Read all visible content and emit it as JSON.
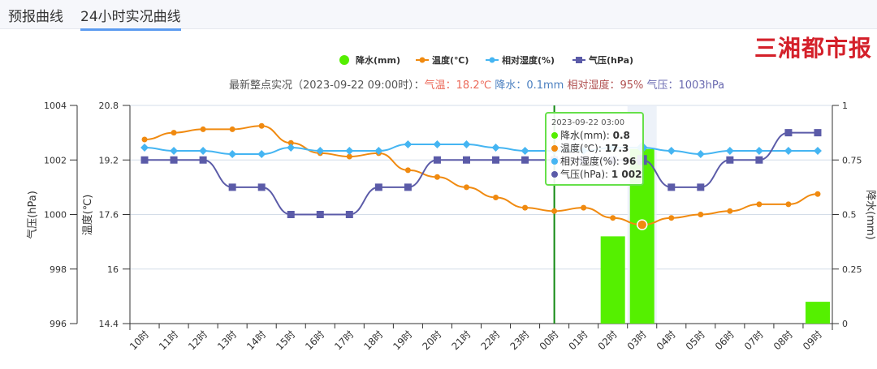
{
  "tabs": [
    {
      "label": "预报曲线"
    },
    {
      "label": "24小时实况曲线"
    }
  ],
  "legend": [
    {
      "label": "降水(mm)",
      "color": "#55ee00"
    },
    {
      "label": "温度(℃)",
      "color": "#f08a10"
    },
    {
      "label": "相对湿度(%)",
      "color": "#45b5f2"
    },
    {
      "label": "气压(hPa)",
      "color": "#5b5ba8"
    }
  ],
  "subtitle": {
    "prefix": "最新整点实况（2023-09-22 09:00时）：",
    "temp": "气温：18.2℃",
    "rain": "降水：0.1mm",
    "humidity": "相对湿度：95%",
    "pressure": "气压：1003hPa"
  },
  "tooltip": {
    "time": "2023-09-22 03:00",
    "rows": [
      {
        "label": "降水(mm): ",
        "value": "0.8",
        "color": "#55ee00"
      },
      {
        "label": "温度(℃): ",
        "value": "17.3",
        "color": "#f08a10"
      },
      {
        "label": "相对湿度(%): ",
        "value": "96",
        "color": "#45b5f2"
      },
      {
        "label": "气压(hPa): ",
        "value": "1 002",
        "color": "#5b5ba8"
      }
    ]
  },
  "watermark": "三湘都市报",
  "chart_data": {
    "type": "line",
    "categories": [
      "10时",
      "11时",
      "12时",
      "13时",
      "14时",
      "15时",
      "16时",
      "17时",
      "18时",
      "19时",
      "20时",
      "21时",
      "22时",
      "23时",
      "00时",
      "01时",
      "02时",
      "03时",
      "04时",
      "05时",
      "06时",
      "07时",
      "08时",
      "09时"
    ],
    "series": [
      {
        "name": "降水(mm)",
        "type": "bar",
        "axis": "right",
        "values": [
          0,
          0,
          0,
          0,
          0,
          0,
          0,
          0,
          0,
          0,
          0,
          0,
          0,
          0,
          0,
          0,
          0.4,
          0.8,
          0,
          0,
          0,
          0,
          0,
          0.1
        ]
      },
      {
        "name": "温度(℃)",
        "type": "line",
        "axis": "temp",
        "values": [
          19.8,
          20.0,
          20.1,
          20.1,
          20.2,
          19.7,
          19.4,
          19.3,
          19.4,
          18.9,
          18.7,
          18.4,
          18.1,
          17.8,
          17.7,
          17.8,
          17.5,
          17.3,
          17.5,
          17.6,
          17.7,
          17.9,
          17.9,
          18.2
        ]
      },
      {
        "name": "相对湿度(%)",
        "type": "line",
        "axis": "humidity",
        "values": [
          96,
          95,
          95,
          94,
          94,
          96,
          95,
          95,
          95,
          97,
          97,
          97,
          96,
          95,
          95,
          95,
          96,
          96,
          95,
          94,
          95,
          95,
          95,
          95
        ]
      },
      {
        "name": "气压(hPa)",
        "type": "line",
        "axis": "pressure",
        "values": [
          1002,
          1002,
          1002,
          1001,
          1001,
          1000,
          1000,
          1000,
          1001,
          1001,
          1002,
          1002,
          1002,
          1002,
          1002,
          1002,
          1002,
          1002,
          1001,
          1001,
          1002,
          1002,
          1003,
          1003
        ]
      }
    ],
    "axes": {
      "pressure": {
        "label": "气压(hPa)",
        "range": [
          996,
          1004
        ],
        "ticks": [
          "1004",
          "1002",
          "1000",
          "998",
          "996"
        ]
      },
      "temp": {
        "label": "温度(℃)",
        "range": [
          14.4,
          20.8
        ],
        "ticks": [
          "20.8",
          "19.2",
          "17.6",
          "16",
          "14.4"
        ]
      },
      "right": {
        "label": "降水(mm)",
        "range": [
          0,
          1
        ],
        "ticks": [
          "1",
          "0.75",
          "0.5",
          "0.25",
          "0"
        ]
      }
    },
    "highlight_category": "03时",
    "current_marker": "00时",
    "grid": true,
    "legend_position": "top-center"
  }
}
